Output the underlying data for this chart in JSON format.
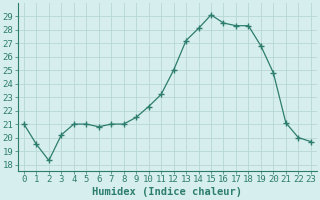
{
  "x": [
    0,
    1,
    2,
    3,
    4,
    5,
    6,
    7,
    8,
    9,
    10,
    11,
    12,
    13,
    14,
    15,
    16,
    17,
    18,
    19,
    20,
    21,
    22,
    23
  ],
  "y": [
    21.0,
    19.5,
    18.3,
    20.2,
    21.0,
    21.0,
    20.8,
    21.0,
    21.0,
    21.5,
    22.3,
    23.2,
    25.0,
    27.2,
    28.1,
    29.1,
    28.5,
    28.3,
    28.3,
    26.8,
    24.8,
    21.1,
    20.0,
    19.7
  ],
  "xlabel": "Humidex (Indice chaleur)",
  "ylim": [
    17.5,
    30.0
  ],
  "xlim": [
    -0.5,
    23.5
  ],
  "yticks": [
    18,
    19,
    20,
    21,
    22,
    23,
    24,
    25,
    26,
    27,
    28,
    29
  ],
  "xticks": [
    0,
    1,
    2,
    3,
    4,
    5,
    6,
    7,
    8,
    9,
    10,
    11,
    12,
    13,
    14,
    15,
    16,
    17,
    18,
    19,
    20,
    21,
    22,
    23
  ],
  "line_color": "#2d7d6e",
  "marker": "+",
  "marker_size": 4.0,
  "bg_color": "#d6eeed",
  "grid_color": "#b8d8d5",
  "tick_color": "#2d7d6e",
  "xlabel_fontsize": 7.5,
  "tick_fontsize": 6.5,
  "xlabel_fontweight": "bold"
}
